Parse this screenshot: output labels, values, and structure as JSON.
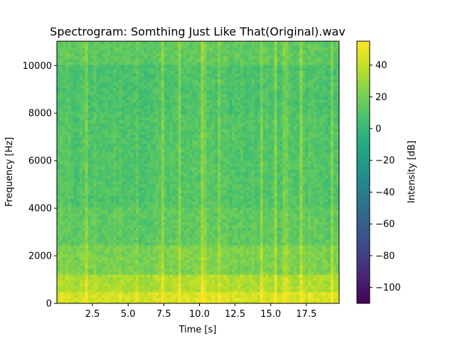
{
  "chart_data": {
    "type": "heatmap",
    "title": "Spectrogram: Somthing Just Like That(Original).wav",
    "xlabel": "Time [s]",
    "ylabel": "Frequency [Hz]",
    "colorbar_label": "Intensity [dB]",
    "colormap": "viridis",
    "xlim": [
      0,
      19.8
    ],
    "ylim": [
      0,
      11025
    ],
    "clim": [
      -110,
      55
    ],
    "x_ticks": [
      2.5,
      5.0,
      7.5,
      10.0,
      12.5,
      15.0,
      17.5
    ],
    "x_tick_labels": [
      "2.5",
      "5.0",
      "7.5",
      "10.0",
      "12.5",
      "15.0",
      "17.5"
    ],
    "y_ticks": [
      0,
      2000,
      4000,
      6000,
      8000,
      10000
    ],
    "y_tick_labels": [
      "0",
      "2000",
      "4000",
      "6000",
      "8000",
      "10000"
    ],
    "colorbar_ticks": [
      -100,
      -80,
      -60,
      -40,
      -20,
      0,
      20,
      40
    ],
    "colorbar_tick_labels": [
      "−100",
      "−80",
      "−60",
      "−40",
      "−20",
      "0",
      "20",
      "40"
    ],
    "frequency_bands": [
      {
        "freq_range": [
          0,
          500
        ],
        "intensity_db": 45
      },
      {
        "freq_range": [
          500,
          1200
        ],
        "intensity_db": 35
      },
      {
        "freq_range": [
          1200,
          2500
        ],
        "intensity_db": 22
      },
      {
        "freq_range": [
          2500,
          4000
        ],
        "intensity_db": 14
      },
      {
        "freq_range": [
          4000,
          6000
        ],
        "intensity_db": 10
      },
      {
        "freq_range": [
          6000,
          8000
        ],
        "intensity_db": 10
      },
      {
        "freq_range": [
          8000,
          10000
        ],
        "intensity_db": 8
      },
      {
        "freq_range": [
          10000,
          11025
        ],
        "intensity_db": 14
      }
    ],
    "grid": false
  }
}
